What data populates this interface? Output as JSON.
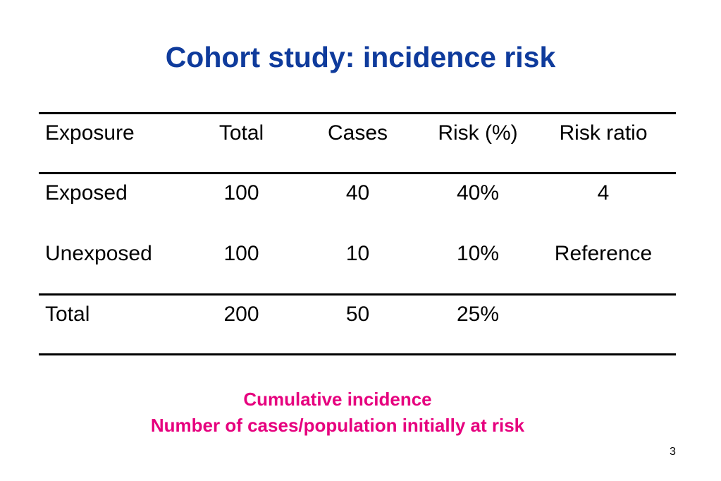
{
  "slide": {
    "title": "Cohort study: incidence risk",
    "page_number": "3"
  },
  "table": {
    "headers": {
      "exposure": "Exposure",
      "total": "Total",
      "cases": "Cases",
      "risk": "Risk (%)",
      "ratio": "Risk ratio"
    },
    "rows": [
      {
        "exposure": "Exposed",
        "total": "100",
        "cases": "40",
        "risk": "40%",
        "ratio": "4"
      },
      {
        "exposure": "Unexposed",
        "total": "100",
        "cases": "10",
        "risk": "10%",
        "ratio": "Reference"
      },
      {
        "exposure": "Total",
        "total": "200",
        "cases": "50",
        "risk": "25%",
        "ratio": ""
      }
    ]
  },
  "notes": {
    "line1": "Cumulative incidence",
    "line2": "Number of cases/population initially at risk"
  },
  "colors": {
    "title": "#0f3b9c",
    "note": "#e6007e"
  }
}
